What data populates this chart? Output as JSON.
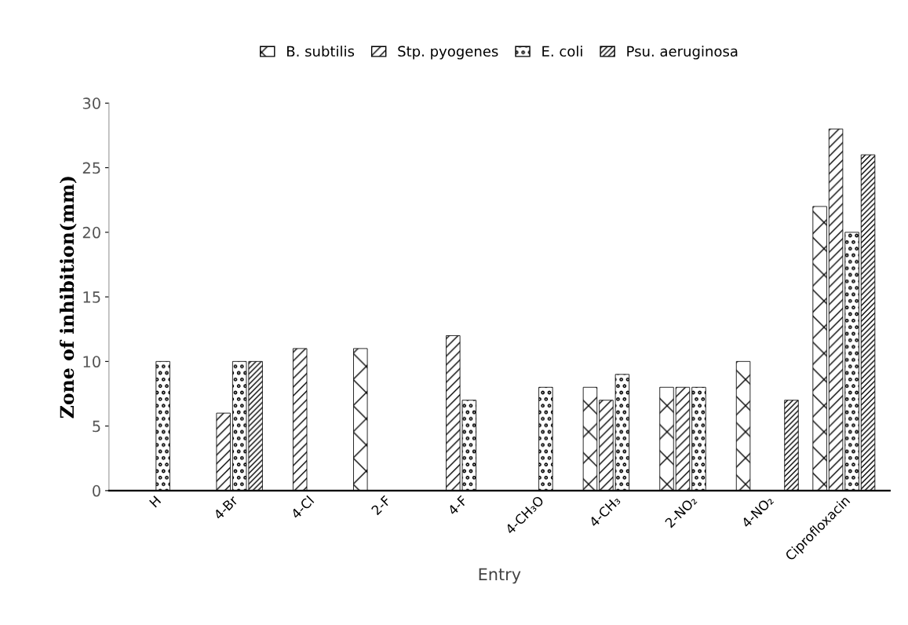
{
  "chart_data": {
    "type": "bar",
    "xlabel": "Entry",
    "ylabel": "Zone of inhibition(mm)",
    "categories": [
      "H",
      "4-Br",
      "4-Cl",
      "2-F",
      "4-F",
      "4-CH₃O",
      "4-CH₃",
      "2-NO₂",
      "4-NO₂",
      "Ciprofloxacin"
    ],
    "series": [
      {
        "name": "B. subtilis",
        "color": "#000000",
        "values": [
          null,
          null,
          null,
          11,
          null,
          null,
          8,
          8,
          10,
          22
        ]
      },
      {
        "name": "Stp. pyogenes",
        "color": "#000000",
        "values": [
          null,
          6,
          11,
          null,
          12,
          null,
          7,
          8,
          null,
          28
        ]
      },
      {
        "name": "E. coli",
        "color": "#000000",
        "values": [
          10,
          10,
          null,
          null,
          7,
          8,
          9,
          8,
          null,
          20
        ]
      },
      {
        "name": "Psu. aeruginosa",
        "color": "#000000",
        "values": [
          null,
          10,
          null,
          null,
          null,
          null,
          null,
          null,
          7,
          26
        ]
      }
    ],
    "ylim": [
      0,
      30
    ],
    "yticks": [
      0,
      5,
      10,
      15,
      20,
      25,
      30
    ],
    "grid": false,
    "legend": "top"
  }
}
